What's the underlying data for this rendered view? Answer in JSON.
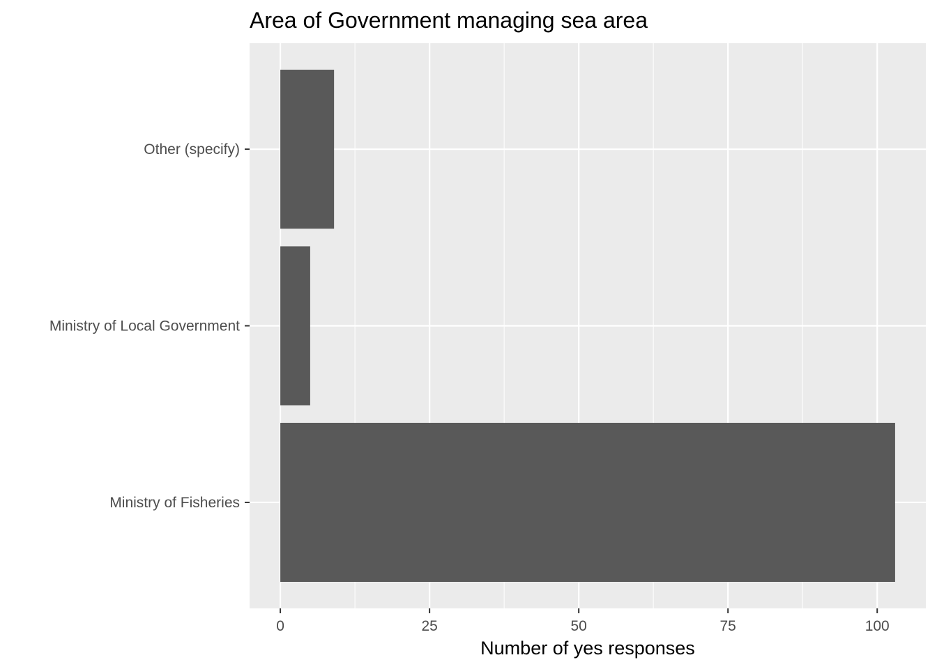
{
  "chart_data": {
    "type": "bar",
    "orientation": "horizontal",
    "title": "Area of Government managing sea area",
    "xlabel": "Number of yes responses",
    "ylabel": "",
    "categories": [
      "Ministry of Fisheries",
      "Ministry of Local Government",
      "Other (specify)"
    ],
    "values": [
      103,
      5,
      9
    ],
    "xlim": [
      -5.15,
      108.15
    ],
    "xticks": [
      0,
      25,
      50,
      75,
      100
    ],
    "grid": true,
    "legend": "none",
    "colors": {
      "bar": "#595959",
      "panel": "#ebebeb",
      "grid": "#ffffff",
      "tick": "#333333"
    }
  }
}
